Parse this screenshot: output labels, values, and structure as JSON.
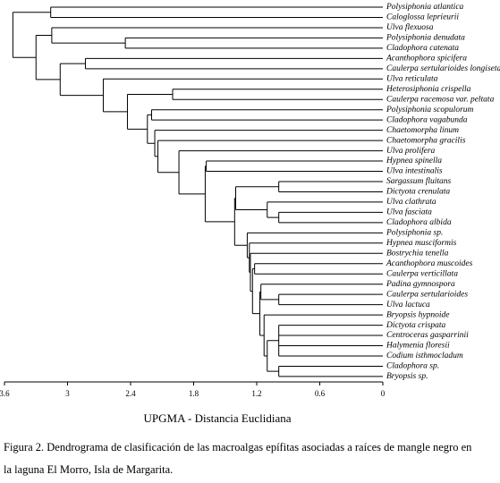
{
  "chart_data": {
    "type": "dendrogram",
    "xlabel": "UPGMA - Distancia Euclidiana",
    "caption": [
      "Figura 2. Dendrograma de clasificación de las macroalgas epífitas asociadas a raíces de mangle negro en",
      "la laguna El Morro, Isla de Margarita."
    ],
    "xlim": [
      3.6,
      0
    ],
    "xticks": [
      3.6,
      3,
      2.4,
      1.8,
      1.2,
      0.6,
      0
    ],
    "tree": {
      "height": 3.52,
      "children": [
        {
          "height": 3.16,
          "children": [
            {
              "label": "Polysiphonia atlantica"
            },
            {
              "label": "Caloglossa leprieurii"
            }
          ]
        },
        {
          "height": 3.3,
          "children": [
            {
              "height": 3.15,
              "children": [
                {
                  "label": "Ulva flexuosa"
                },
                {
                  "height": 2.45,
                  "children": [
                    {
                      "label": "Polysiphonia denudata"
                    },
                    {
                      "label": "Cladophora catenata"
                    }
                  ]
                }
              ]
            },
            {
              "height": 3.07,
              "children": [
                {
                  "height": 2.83,
                  "children": [
                    {
                      "label": "Acanthophora spicifera"
                    },
                    {
                      "label": "Caulerpa sertularioides longiseta"
                    }
                  ]
                },
                {
                  "height": 2.66,
                  "children": [
                    {
                      "label": "Ulva reticulata"
                    },
                    {
                      "height": 2.43,
                      "children": [
                        {
                          "height": 2.0,
                          "children": [
                            {
                              "label": "Heterosiphonia crispella"
                            },
                            {
                              "label": "Caulerpa racemosa var. peltata"
                            }
                          ]
                        },
                        {
                          "height": 2.24,
                          "children": [
                            {
                              "height": 2.2,
                              "children": [
                                {
                                  "label": "Polysiphonia scopulorum"
                                },
                                {
                                  "label": "Cladophora vagabunda"
                                }
                              ]
                            },
                            {
                              "height": 2.17,
                              "children": [
                                {
                                  "label": "Chaetomorpha linum"
                                },
                                {
                                  "height": 2.14,
                                  "children": [
                                    {
                                      "label": "Chaetomorpha gracilis"
                                    },
                                    {
                                      "height": 1.94,
                                      "children": [
                                        {
                                          "label": "Ulva prolifera"
                                        },
                                        {
                                          "height": 1.69,
                                          "children": [
                                            {
                                              "height": 1.68,
                                              "children": [
                                                {
                                                  "label": "Hypnea spinella"
                                                },
                                                {
                                                  "label": "Ulva intestinalis"
                                                }
                                              ]
                                            },
                                            {
                                              "height": 1.41,
                                              "children": [
                                                {
                                                  "height": 1.4,
                                                  "children": [
                                                    {
                                                      "height": 0.99,
                                                      "children": [
                                                        {
                                                          "label": "Sargassum fluitans"
                                                        },
                                                        {
                                                          "label": "Dictyota crenulata"
                                                        }
                                                      ]
                                                    },
                                                    {
                                                      "height": 1.1,
                                                      "children": [
                                                        {
                                                          "label": "Ulva clathrata"
                                                        },
                                                        {
                                                          "height": 0.99,
                                                          "children": [
                                                            {
                                                              "label": "Ulva fasciata"
                                                            },
                                                            {
                                                              "label": "Cladophora albida"
                                                            }
                                                          ]
                                                        }
                                                      ]
                                                    }
                                                  ]
                                                },
                                                {
                                                  "height": 1.29,
                                                  "children": [
                                                    {
                                                      "label": "Polysiphonia sp."
                                                    },
                                                    {
                                                      "height": 1.27,
                                                      "children": [
                                                        {
                                                          "label": "Hypnea musciformis"
                                                        },
                                                        {
                                                          "height": 1.26,
                                                          "children": [
                                                            {
                                                              "label": "Bostrychia tenella"
                                                            },
                                                            {
                                                              "height": 1.24,
                                                              "children": [
                                                                {
                                                                  "height": 1.22,
                                                                  "children": [
                                                                    {
                                                                      "label": "Acanthophora muscoides"
                                                                    },
                                                                    {
                                                                      "label": "Caulerpa verticillata"
                                                                    }
                                                                  ]
                                                                },
                                                                {
                                                                  "height": 1.17,
                                                                  "children": [
                                                                    {
                                                                      "height": 1.16,
                                                                      "children": [
                                                                        {
                                                                          "label": "Padina gymnospora"
                                                                        },
                                                                        {
                                                                          "height": 0.99,
                                                                          "children": [
                                                                            {
                                                                              "label": "Caulerpa sertularioides"
                                                                            },
                                                                            {
                                                                              "label": "Ulva lactuca"
                                                                            }
                                                                          ]
                                                                        }
                                                                      ]
                                                                    },
                                                                    {
                                                                      "height": 1.13,
                                                                      "children": [
                                                                        {
                                                                          "label": "Bryopsis hypnoide"
                                                                        },
                                                                        {
                                                                          "height": 1.1,
                                                                          "children": [
                                                                            {
                                                                              "height": 0.99,
                                                                              "children": [
                                                                                {
                                                                                  "label": "Dictyota crispata"
                                                                                },
                                                                                {
                                                                                  "label": "Centroceras gasparrinii"
                                                                                },
                                                                                {
                                                                                  "label": "Halymenia floresii"
                                                                                },
                                                                                {
                                                                                  "label": "Codium isthmocladum"
                                                                                }
                                                                              ]
                                                                            },
                                                                            {
                                                                              "height": 0.99,
                                                                              "children": [
                                                                                {
                                                                                  "label": "Cladophora sp."
                                                                                },
                                                                                {
                                                                                  "label": "Bryopsis sp."
                                                                                }
                                                                              ]
                                                                            }
                                                                          ]
                                                                        }
                                                                      ]
                                                                    }
                                                                  ]
                                                                }
                                                              ]
                                                            }
                                                          ]
                                                        }
                                                      ]
                                                    }
                                                  ]
                                                }
                                              ]
                                            }
                                          ]
                                        }
                                      ]
                                    }
                                  ]
                                }
                              ]
                            }
                          ]
                        }
                      ]
                    }
                  ]
                }
              ]
            }
          ]
        }
      ]
    }
  }
}
